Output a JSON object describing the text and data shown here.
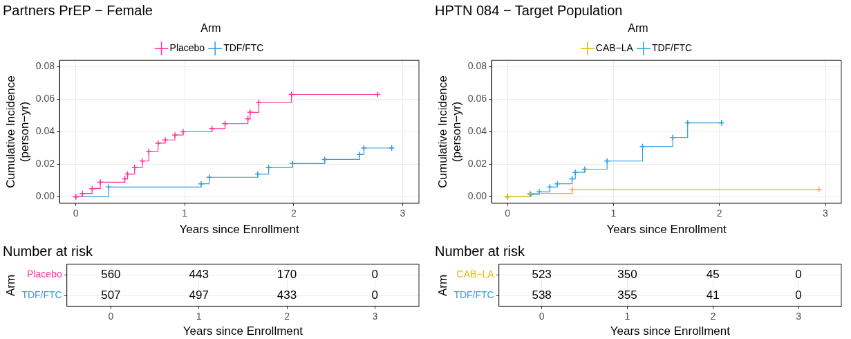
{
  "chart_data": [
    {
      "type": "step",
      "title": "Partners PrEP − Female",
      "xlabel": "Years since Enrollment",
      "ylabel": "Cumulative Incidence\n(person−yr)",
      "legend_title": "Arm",
      "legend": "top",
      "marker": "cross",
      "grid": true,
      "xlim": [
        -0.15,
        3.15
      ],
      "xticks": [
        0,
        1,
        2,
        3
      ],
      "ylim": [
        -0.004,
        0.084
      ],
      "yticks": [
        {
          "value": 0,
          "label": "0.00"
        },
        {
          "value": 0.02,
          "label": "0.02"
        },
        {
          "value": 0.04,
          "label": "0.04"
        },
        {
          "value": 0.06,
          "label": "0.06"
        },
        {
          "value": 0.08,
          "label": "0.08"
        }
      ],
      "series": [
        {
          "name": "Placebo",
          "color": "#ff3399",
          "x": [
            0,
            0.06,
            0.15,
            0.225,
            0.45,
            0.475,
            0.54,
            0.61,
            0.67,
            0.755,
            0.82,
            0.91,
            0.985,
            1.25,
            1.37,
            1.58,
            1.6,
            1.68,
            1.98,
            2.77
          ],
          "values": [
            0,
            0.002,
            0.005,
            0.009,
            0.011,
            0.014,
            0.018,
            0.022,
            0.028,
            0.033,
            0.035,
            0.038,
            0.04,
            0.042,
            0.045,
            0.048,
            0.052,
            0.058,
            0.063,
            0.063
          ]
        },
        {
          "name": "TDF/FTC",
          "color": "#3399dd",
          "x": [
            0,
            0.3,
            1.15,
            1.225,
            1.67,
            1.77,
            1.99,
            2.285,
            2.605,
            2.645,
            2.9
          ],
          "values": [
            0,
            0.006,
            0.008,
            0.012,
            0.014,
            0.018,
            0.0205,
            0.023,
            0.026,
            0.03,
            0.03
          ]
        }
      ]
    },
    {
      "type": "step",
      "title": "HPTN 084 − Target Population",
      "xlabel": "Years since Enrollment",
      "ylabel": "Cumulative Incidence\n(person−yr)",
      "legend_title": "Arm",
      "legend": "top",
      "marker": "cross",
      "grid": true,
      "xlim": [
        -0.15,
        3.15
      ],
      "xticks": [
        0,
        1,
        2,
        3
      ],
      "ylim": [
        -0.004,
        0.084
      ],
      "yticks": [
        {
          "value": 0,
          "label": "0.00"
        },
        {
          "value": 0.02,
          "label": "0.02"
        },
        {
          "value": 0.04,
          "label": "0.04"
        },
        {
          "value": 0.06,
          "label": "0.06"
        },
        {
          "value": 0.08,
          "label": "0.08"
        }
      ],
      "series": [
        {
          "name": "CAB−LA",
          "color": "#e7b800",
          "x": [
            0,
            0.21,
            0.61,
            2.94
          ],
          "values": [
            0,
            0.002,
            0.0045,
            0.0045
          ]
        },
        {
          "name": "TDF/FTC",
          "color": "#2e9fdf",
          "x": [
            0,
            0.22,
            0.3,
            0.4,
            0.47,
            0.61,
            0.64,
            0.73,
            0.94,
            1.275,
            1.56,
            1.7,
            2.02
          ],
          "values": [
            0,
            0.0015,
            0.003,
            0.006,
            0.008,
            0.011,
            0.015,
            0.017,
            0.022,
            0.031,
            0.0365,
            0.0455,
            0.0455
          ]
        }
      ]
    },
    {
      "type": "heatmap",
      "title": "Number at risk",
      "xlabel": "Years since Enrollment",
      "ylabel": "Arm",
      "categories": [
        "0",
        "1",
        "2",
        "3"
      ],
      "y_categories": [
        "Placebo",
        "TDF/FTC"
      ],
      "colors": [
        "#ff3399",
        "#3399dd"
      ],
      "cells": [
        [
          560,
          443,
          170,
          0
        ],
        [
          507,
          497,
          433,
          0
        ]
      ],
      "data_labels": true,
      "grid": true
    },
    {
      "type": "heatmap",
      "title": "Number at risk",
      "xlabel": "Years since Enrollment",
      "ylabel": "Arm",
      "categories": [
        "0",
        "1",
        "2",
        "3"
      ],
      "y_categories": [
        "CAB−LA",
        "TDF/FTC"
      ],
      "colors": [
        "#e7b800",
        "#2e9fdf"
      ],
      "cells": [
        [
          523,
          350,
          45,
          0
        ],
        [
          538,
          355,
          41,
          0
        ]
      ],
      "data_labels": true,
      "grid": true
    }
  ]
}
